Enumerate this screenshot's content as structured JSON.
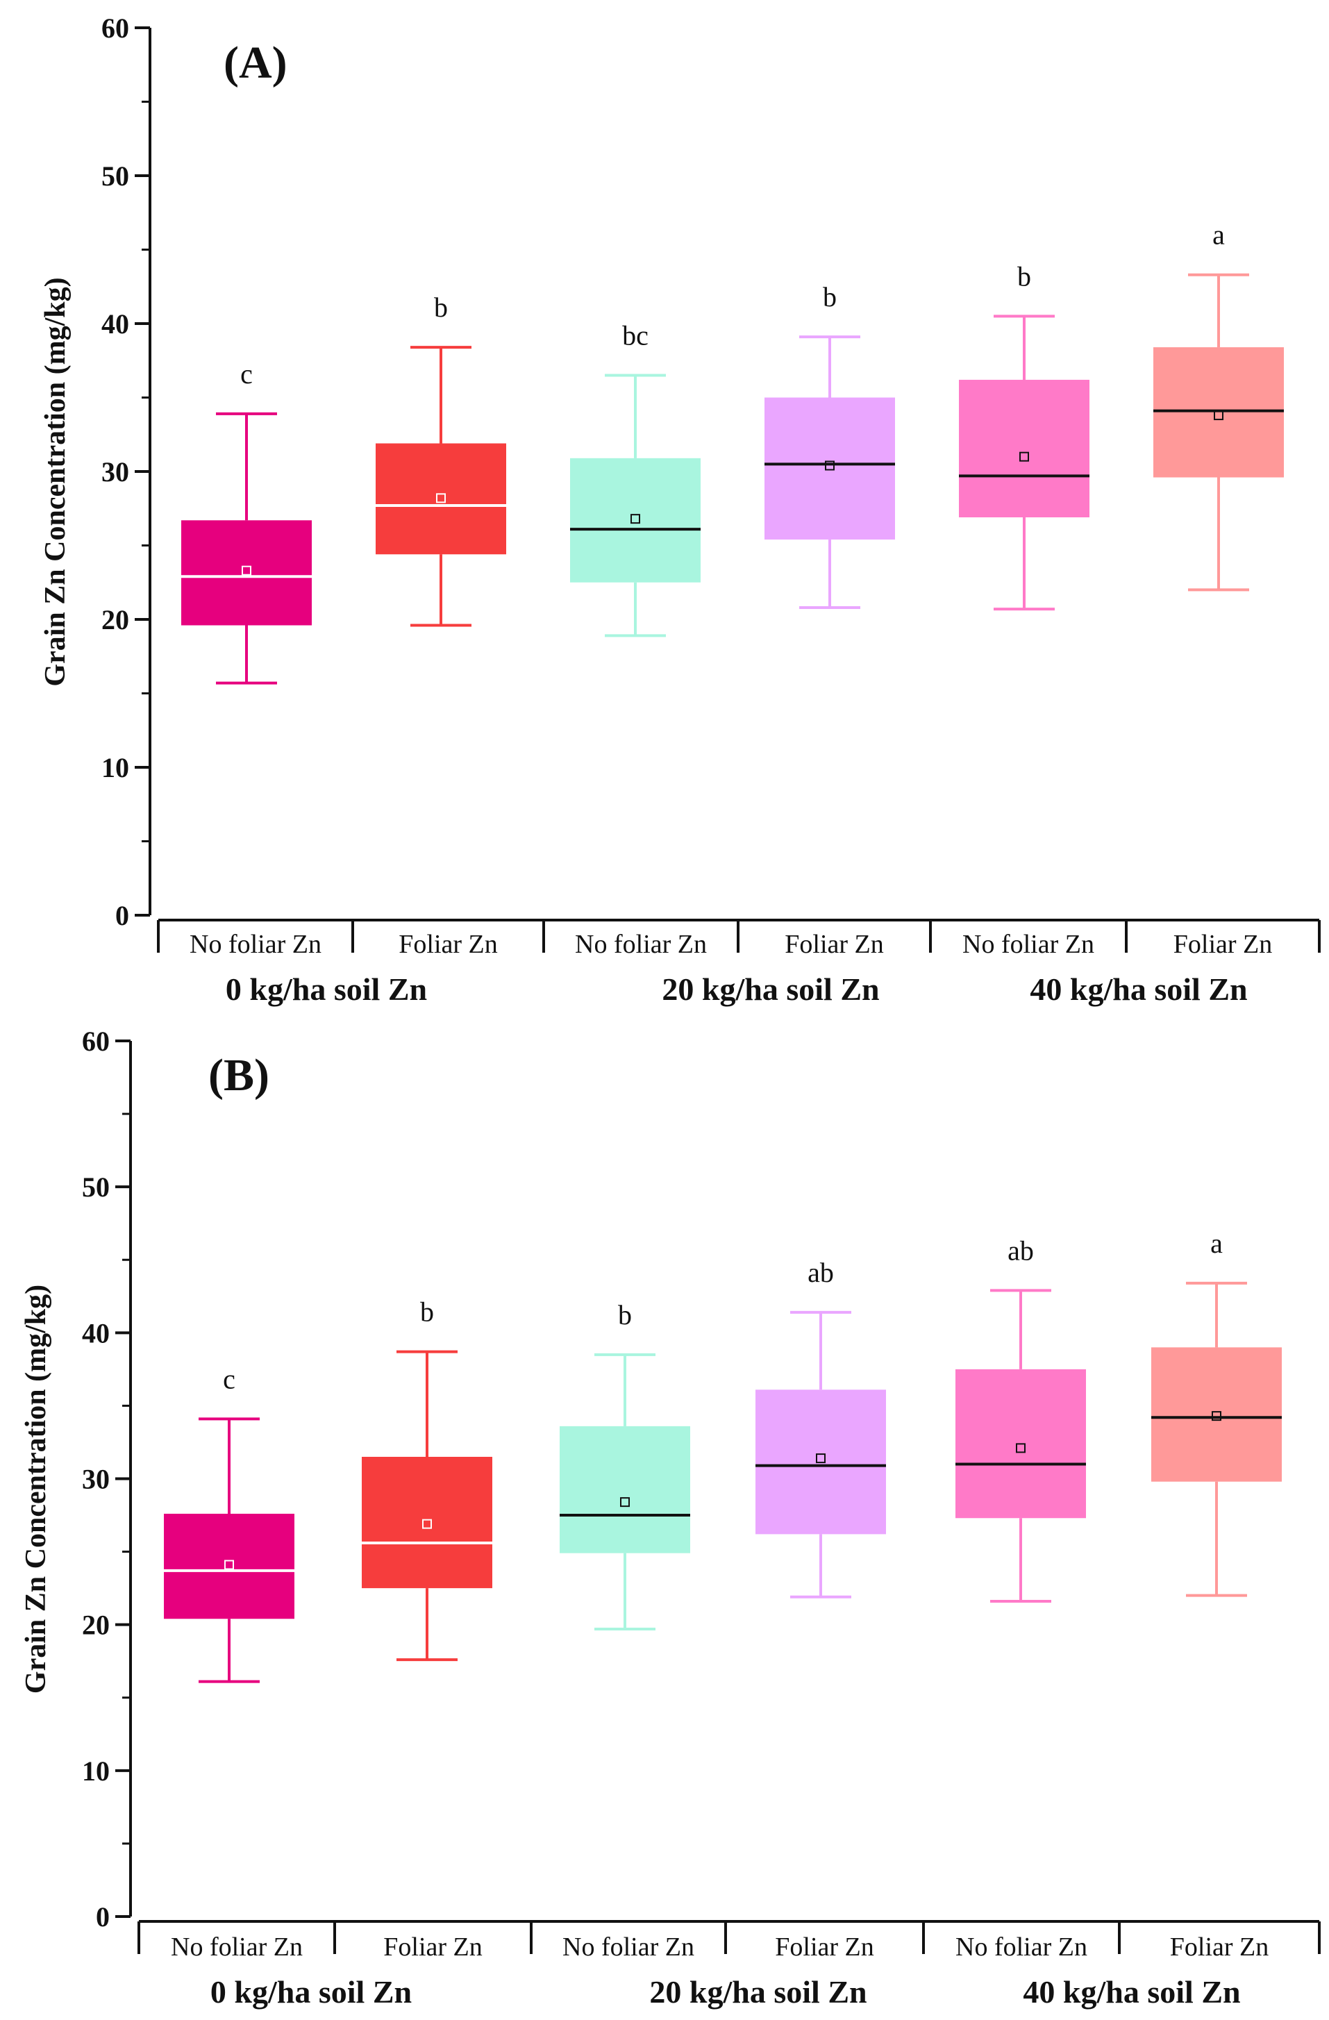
{
  "chart_data": [
    {
      "type": "box",
      "panel": "(A)",
      "ylabel": "Grain Zn Concentration (mg/kg)",
      "ylim": [
        0,
        60
      ],
      "yticks": [
        0,
        10,
        20,
        30,
        40,
        50,
        60
      ],
      "categories": [
        "No foliar Zn",
        "Foliar Zn",
        "No foliar Zn",
        "Foliar Zn",
        "No foliar Zn",
        "Foliar Zn"
      ],
      "groups": [
        "0 kg/ha soil Zn",
        "20 kg/ha soil Zn",
        "40 kg/ha soil Zn"
      ],
      "boxes": [
        {
          "min": 15.7,
          "q1": 19.6,
          "median": 22.9,
          "q3": 26.7,
          "max": 33.9,
          "mean": 23.3,
          "letter": "c",
          "color": "#e6007e",
          "line": "#ffffff"
        },
        {
          "min": 19.6,
          "q1": 24.4,
          "median": 27.7,
          "q3": 31.9,
          "max": 38.4,
          "mean": 28.2,
          "letter": "b",
          "color": "#f63d3d",
          "line": "#ffffff"
        },
        {
          "min": 18.9,
          "q1": 22.5,
          "median": 26.1,
          "q3": 30.9,
          "max": 36.5,
          "mean": 26.8,
          "letter": "bc",
          "color": "#a9f5df",
          "line": "#111111"
        },
        {
          "min": 20.8,
          "q1": 25.4,
          "median": 30.5,
          "q3": 35.0,
          "max": 39.1,
          "mean": 30.4,
          "letter": "b",
          "color": "#eaa6ff",
          "line": "#111111"
        },
        {
          "min": 20.7,
          "q1": 26.9,
          "median": 29.7,
          "q3": 36.2,
          "max": 40.5,
          "mean": 31.0,
          "letter": "b",
          "color": "#ff7ac8",
          "line": "#111111"
        },
        {
          "min": 22.0,
          "q1": 29.6,
          "median": 34.1,
          "q3": 38.4,
          "max": 43.3,
          "mean": 33.8,
          "letter": "a",
          "color": "#ff9999",
          "line": "#111111"
        }
      ]
    },
    {
      "type": "box",
      "panel": "(B)",
      "ylabel": "Grain Zn Concentration (mg/kg)",
      "ylim": [
        0,
        60
      ],
      "yticks": [
        0,
        10,
        20,
        30,
        40,
        50,
        60
      ],
      "categories": [
        "No foliar Zn",
        "Foliar Zn",
        "No foliar Zn",
        "Foliar Zn",
        "No foliar Zn",
        "Foliar Zn"
      ],
      "groups": [
        "0 kg/ha soil Zn",
        "20 kg/ha soil Zn",
        "40 kg/ha soil Zn"
      ],
      "boxes": [
        {
          "min": 16.1,
          "q1": 20.4,
          "median": 23.7,
          "q3": 27.6,
          "max": 34.1,
          "mean": 24.1,
          "letter": "c",
          "color": "#e6007e",
          "line": "#ffffff"
        },
        {
          "min": 17.6,
          "q1": 22.5,
          "median": 25.6,
          "q3": 31.5,
          "max": 38.7,
          "mean": 26.9,
          "letter": "b",
          "color": "#f63d3d",
          "line": "#ffffff"
        },
        {
          "min": 19.7,
          "q1": 24.9,
          "median": 27.5,
          "q3": 33.6,
          "max": 38.5,
          "mean": 28.4,
          "letter": "b",
          "color": "#a9f5df",
          "line": "#111111"
        },
        {
          "min": 21.9,
          "q1": 26.2,
          "median": 30.9,
          "q3": 36.1,
          "max": 41.4,
          "mean": 31.4,
          "letter": "ab",
          "color": "#eaa6ff",
          "line": "#111111"
        },
        {
          "min": 21.6,
          "q1": 27.3,
          "median": 31.0,
          "q3": 37.5,
          "max": 42.9,
          "mean": 32.1,
          "letter": "ab",
          "color": "#ff7ac8",
          "line": "#111111"
        },
        {
          "min": 22.0,
          "q1": 29.8,
          "median": 34.2,
          "q3": 39.0,
          "max": 43.4,
          "mean": 34.3,
          "letter": "a",
          "color": "#ff9999",
          "line": "#111111"
        }
      ]
    }
  ]
}
